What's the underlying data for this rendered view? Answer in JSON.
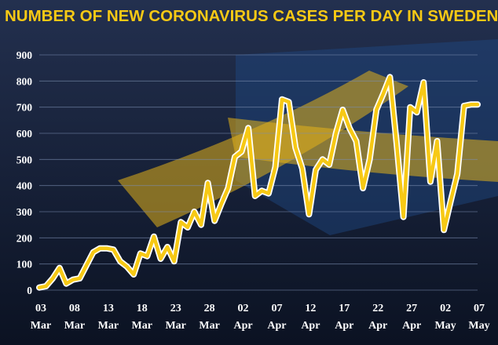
{
  "colors": {
    "background_top": "#23304f",
    "background_bottom": "#0b1222",
    "flag_yellow": "#e3b21a",
    "flag_blue": "#1e4a84",
    "line": "#f7c915",
    "line_outline": "#ffffff",
    "title": "#f7c915",
    "tick_text": "#ffffff",
    "grid": "#7b8db0"
  },
  "chart_data": {
    "type": "line",
    "title": "NUMBER OF NEW CORONAVIRUS CASES PER DAY IN SWEDEN",
    "xlabel": "",
    "ylabel": "",
    "ylim": [
      0,
      900
    ],
    "yticks": [
      0,
      100,
      200,
      300,
      400,
      500,
      600,
      700,
      800,
      900
    ],
    "grid": true,
    "x_tick_labels": [
      {
        "day": "03",
        "month": "Mar"
      },
      {
        "day": "08",
        "month": "Mar"
      },
      {
        "day": "13",
        "month": "Mar"
      },
      {
        "day": "18",
        "month": "Mar"
      },
      {
        "day": "23",
        "month": "Mar"
      },
      {
        "day": "28",
        "month": "Mar"
      },
      {
        "day": "02",
        "month": "Apr"
      },
      {
        "day": "07",
        "month": "Apr"
      },
      {
        "day": "12",
        "month": "Apr"
      },
      {
        "day": "17",
        "month": "Apr"
      },
      {
        "day": "22",
        "month": "Apr"
      },
      {
        "day": "27",
        "month": "Apr"
      },
      {
        "day": "02",
        "month": "May"
      },
      {
        "day": "07",
        "month": "May"
      }
    ],
    "x": [
      "2020-03-03",
      "2020-03-04",
      "2020-03-05",
      "2020-03-06",
      "2020-03-07",
      "2020-03-08",
      "2020-03-09",
      "2020-03-10",
      "2020-03-11",
      "2020-03-12",
      "2020-03-13",
      "2020-03-14",
      "2020-03-15",
      "2020-03-16",
      "2020-03-17",
      "2020-03-18",
      "2020-03-19",
      "2020-03-20",
      "2020-03-21",
      "2020-03-22",
      "2020-03-23",
      "2020-03-24",
      "2020-03-25",
      "2020-03-26",
      "2020-03-27",
      "2020-03-28",
      "2020-03-29",
      "2020-03-30",
      "2020-03-31",
      "2020-04-01",
      "2020-04-02",
      "2020-04-03",
      "2020-04-04",
      "2020-04-05",
      "2020-04-06",
      "2020-04-07",
      "2020-04-08",
      "2020-04-09",
      "2020-04-10",
      "2020-04-11",
      "2020-04-12",
      "2020-04-13",
      "2020-04-14",
      "2020-04-15",
      "2020-04-16",
      "2020-04-17",
      "2020-04-18",
      "2020-04-19",
      "2020-04-20",
      "2020-04-21",
      "2020-04-22",
      "2020-04-23",
      "2020-04-24",
      "2020-04-25",
      "2020-04-26",
      "2020-04-27",
      "2020-04-28",
      "2020-04-29",
      "2020-04-30",
      "2020-05-01",
      "2020-05-02",
      "2020-05-03",
      "2020-05-04",
      "2020-05-05",
      "2020-05-06",
      "2020-05-07"
    ],
    "series": [
      {
        "values": [
          10,
          15,
          45,
          85,
          25,
          40,
          45,
          95,
          145,
          160,
          160,
          155,
          110,
          90,
          60,
          140,
          130,
          205,
          120,
          165,
          110,
          260,
          240,
          300,
          250,
          410,
          265,
          330,
          390,
          510,
          530,
          620,
          360,
          380,
          370,
          470,
          730,
          720,
          545,
          465,
          290,
          460,
          500,
          480,
          600,
          690,
          620,
          570,
          390,
          500,
          690,
          750,
          815,
          560,
          280,
          700,
          680,
          795,
          415,
          570,
          230,
          340,
          445,
          705,
          710,
          710
        ]
      }
    ]
  }
}
